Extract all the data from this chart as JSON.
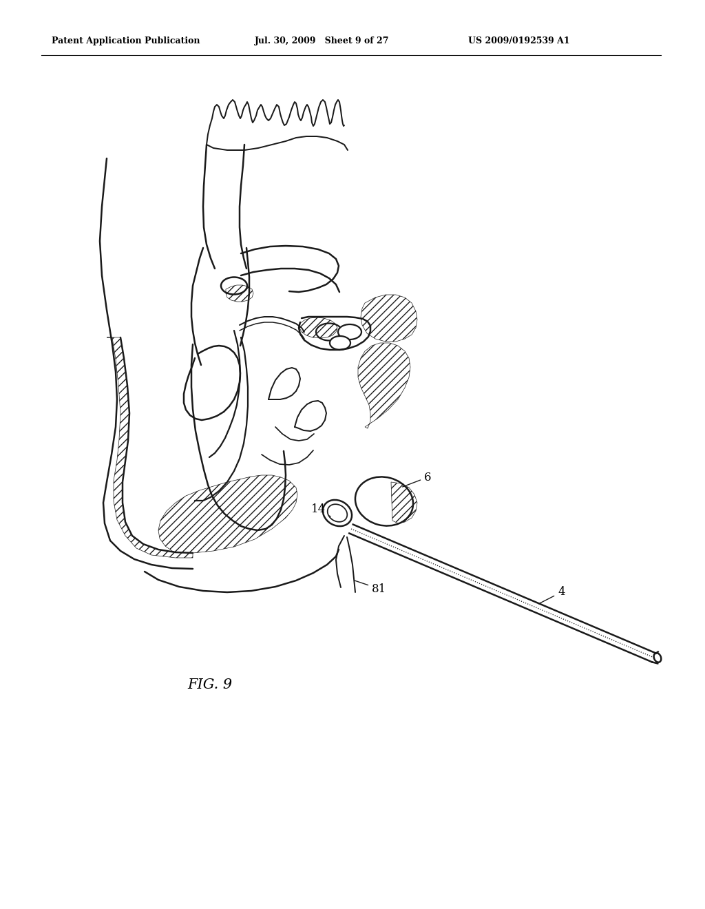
{
  "title_left": "Patent Application Publication",
  "title_center": "Jul. 30, 2009   Sheet 9 of 27",
  "title_right": "US 2009/0192539 A1",
  "figure_label": "FIG. 9",
  "bg_color": "#ffffff",
  "line_color": "#1a1a1a"
}
